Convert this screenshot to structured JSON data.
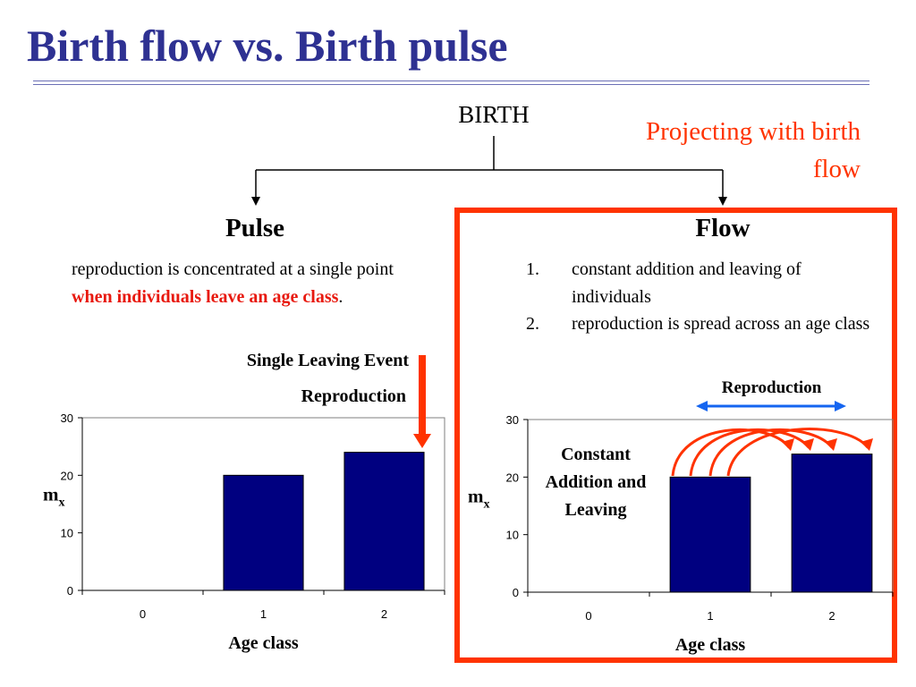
{
  "slide": {
    "title": "Birth flow vs. Birth pulse",
    "root_label": "BIRTH",
    "callout": "Projecting with birth flow"
  },
  "pulse": {
    "title": "Pulse",
    "text_start": "reproduction is concentrated at a single point",
    "text_emphasis": "when individuals leave an age class",
    "text_end": ".",
    "note_event": "Single Leaving Event",
    "note_reproduction": "Reproduction"
  },
  "flow": {
    "title": "Flow",
    "items": [
      {
        "number": "1.",
        "text": "constant addition and leaving of individuals"
      },
      {
        "number": "2.",
        "text": "reproduction is spread across an age class"
      }
    ],
    "note_reproduction": "Reproduction",
    "note_constant": "Constant Addition and Leaving"
  },
  "colors": {
    "title": "#2e3192",
    "bar": "#000080",
    "accent_red": "#ff3300",
    "emphasis_red": "#e8190f",
    "reproduction_arrow": "#1565f0"
  },
  "chart_data": [
    {
      "type": "bar",
      "categories": [
        "0",
        "1",
        "2"
      ],
      "values": [
        0,
        20,
        24
      ],
      "ylim": [
        0,
        30
      ],
      "yticks": [
        "0",
        "10",
        "20",
        "30"
      ],
      "xlabel": "Age class",
      "ylabel_main": "m",
      "ylabel_sub": "x",
      "grid": false
    },
    {
      "type": "bar",
      "categories": [
        "0",
        "1",
        "2"
      ],
      "values": [
        0,
        20,
        24
      ],
      "ylim": [
        0,
        30
      ],
      "yticks": [
        "0",
        "10",
        "20",
        "30"
      ],
      "xlabel": "Age class",
      "ylabel_main": "m",
      "ylabel_sub": "x",
      "grid": false
    }
  ]
}
